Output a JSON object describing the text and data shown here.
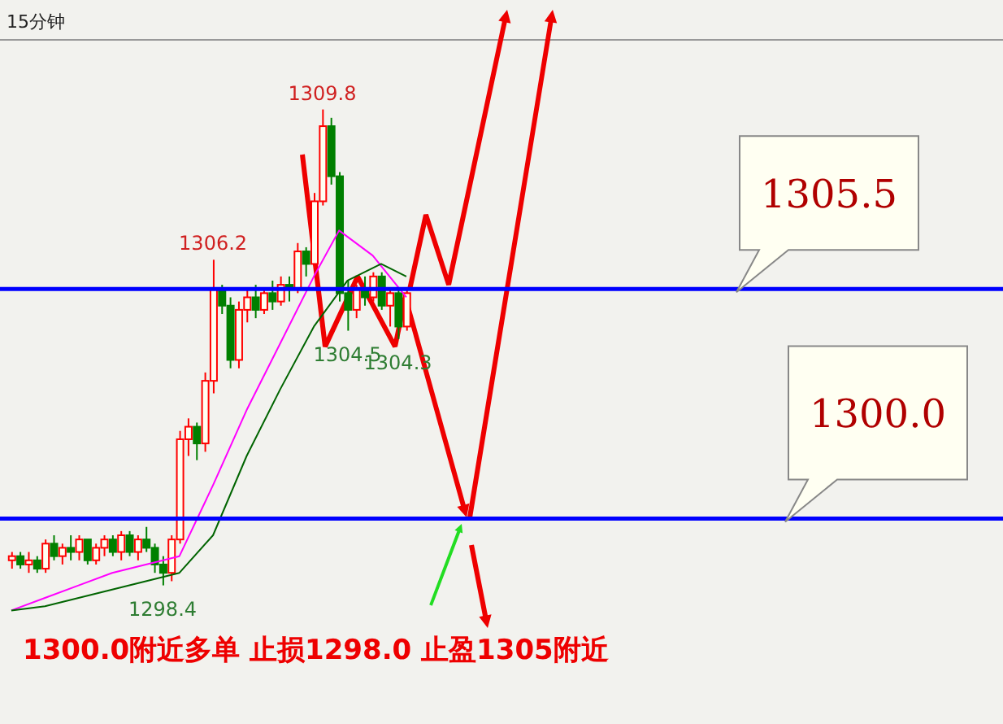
{
  "chart_data": {
    "type": "candlestick",
    "title": "15分钟",
    "categories": [
      null,
      null,
      null,
      null,
      null,
      null,
      null,
      null,
      null,
      null,
      null,
      null,
      null,
      null,
      null,
      null,
      null,
      null,
      null,
      null,
      null,
      null,
      null,
      null,
      null,
      null,
      null,
      null,
      null,
      null,
      null,
      null,
      null,
      null,
      null,
      null,
      null,
      null,
      null,
      null,
      null,
      null,
      null,
      null,
      null,
      null,
      null,
      null
    ],
    "ohlc": [
      [
        1299.0,
        1299.2,
        1298.8,
        1299.1
      ],
      [
        1299.1,
        1299.2,
        1298.8,
        1298.9
      ],
      [
        1298.9,
        1299.2,
        1298.7,
        1299.0
      ],
      [
        1299.0,
        1299.1,
        1298.7,
        1298.8
      ],
      [
        1298.8,
        1299.5,
        1298.7,
        1299.4
      ],
      [
        1299.4,
        1299.6,
        1299.0,
        1299.1
      ],
      [
        1299.1,
        1299.4,
        1298.9,
        1299.3
      ],
      [
        1299.3,
        1299.6,
        1299.0,
        1299.2
      ],
      [
        1299.2,
        1299.6,
        1299.0,
        1299.5
      ],
      [
        1299.5,
        1299.5,
        1298.9,
        1299.0
      ],
      [
        1299.0,
        1299.4,
        1298.9,
        1299.3
      ],
      [
        1299.3,
        1299.6,
        1299.1,
        1299.5
      ],
      [
        1299.5,
        1299.6,
        1299.1,
        1299.2
      ],
      [
        1299.2,
        1299.7,
        1299.0,
        1299.6
      ],
      [
        1299.6,
        1299.7,
        1299.1,
        1299.2
      ],
      [
        1299.2,
        1299.6,
        1299.0,
        1299.5
      ],
      [
        1299.5,
        1299.8,
        1299.2,
        1299.3
      ],
      [
        1299.3,
        1299.4,
        1298.7,
        1298.9
      ],
      [
        1298.9,
        1299.1,
        1298.4,
        1298.7
      ],
      [
        1298.7,
        1299.6,
        1298.5,
        1299.5
      ],
      [
        1299.5,
        1302.1,
        1299.4,
        1301.9
      ],
      [
        1301.9,
        1302.4,
        1301.5,
        1302.2
      ],
      [
        1302.2,
        1302.3,
        1301.4,
        1301.8
      ],
      [
        1301.8,
        1303.5,
        1301.6,
        1303.3
      ],
      [
        1303.3,
        1306.2,
        1303.0,
        1305.5
      ],
      [
        1305.5,
        1305.6,
        1304.9,
        1305.1
      ],
      [
        1305.1,
        1305.3,
        1303.6,
        1303.8
      ],
      [
        1303.8,
        1305.2,
        1303.6,
        1305.0
      ],
      [
        1305.0,
        1305.5,
        1304.7,
        1305.3
      ],
      [
        1305.3,
        1305.6,
        1304.8,
        1305.0
      ],
      [
        1305.0,
        1305.5,
        1304.9,
        1305.4
      ],
      [
        1305.4,
        1305.7,
        1305.0,
        1305.2
      ],
      [
        1305.2,
        1305.8,
        1305.1,
        1305.6
      ],
      [
        1305.6,
        1305.8,
        1305.2,
        1305.5
      ],
      [
        1305.5,
        1306.6,
        1305.4,
        1306.4
      ],
      [
        1306.4,
        1306.5,
        1305.8,
        1306.1
      ],
      [
        1306.1,
        1307.8,
        1306.0,
        1307.6
      ],
      [
        1307.6,
        1309.8,
        1307.5,
        1309.4
      ],
      [
        1309.4,
        1309.6,
        1308.0,
        1308.2
      ],
      [
        1308.2,
        1308.3,
        1305.2,
        1305.4
      ],
      [
        1305.4,
        1305.7,
        1304.5,
        1305.0
      ],
      [
        1305.0,
        1305.6,
        1304.8,
        1305.5
      ],
      [
        1305.5,
        1305.8,
        1305.1,
        1305.3
      ],
      [
        1305.3,
        1305.9,
        1305.2,
        1305.8
      ],
      [
        1305.8,
        1305.9,
        1305.0,
        1305.1
      ],
      [
        1305.1,
        1305.5,
        1304.6,
        1305.4
      ],
      [
        1305.4,
        1305.5,
        1304.3,
        1304.6
      ],
      [
        1304.6,
        1305.5,
        1304.5,
        1305.4
      ]
    ],
    "series": [
      {
        "type": "line",
        "color": "#ff00ff",
        "values": [
          1297.8,
          null,
          null,
          null,
          1298.1,
          null,
          null,
          null,
          1298.4,
          null,
          null,
          null,
          1298.7,
          null,
          null,
          null,
          1298.9,
          null,
          null,
          null,
          1299.1,
          null,
          null,
          null,
          1300.8,
          null,
          null,
          null,
          1302.6,
          null,
          null,
          null,
          1304.2,
          null,
          null,
          null,
          1305.8,
          null,
          null,
          1306.9,
          null,
          null,
          null,
          1306.3,
          null,
          null,
          null,
          1305.3
        ]
      },
      {
        "type": "line",
        "color": "#006400",
        "values": [
          1297.8,
          null,
          null,
          null,
          1297.9,
          null,
          null,
          null,
          1298.1,
          null,
          null,
          null,
          1298.3,
          null,
          null,
          null,
          1298.5,
          null,
          null,
          null,
          1298.7,
          null,
          null,
          null,
          1299.6,
          null,
          null,
          null,
          1301.5,
          null,
          null,
          null,
          1303.1,
          null,
          null,
          null,
          1304.6,
          null,
          null,
          null,
          1305.7,
          null,
          null,
          null,
          1306.1,
          null,
          null,
          1305.8
        ]
      }
    ],
    "ref_lines": [
      {
        "axis": "y",
        "value": 1305.5,
        "label": "1305.5",
        "color": "#0000ff"
      },
      {
        "axis": "y",
        "value": 1300.0,
        "label": "1300.0",
        "color": "#0000ff"
      }
    ],
    "annotations": [
      {
        "text": "1309.8",
        "y": 1309.8
      },
      {
        "text": "1306.2",
        "y": 1306.2
      },
      {
        "text": "1298.4",
        "y": 1298.4
      },
      {
        "text": "1304.5",
        "y": 1304.5
      },
      {
        "text": "1304.3",
        "y": 1304.3
      },
      "1300.0附近多单 止损1298.0 止盈1305附近"
    ]
  }
}
